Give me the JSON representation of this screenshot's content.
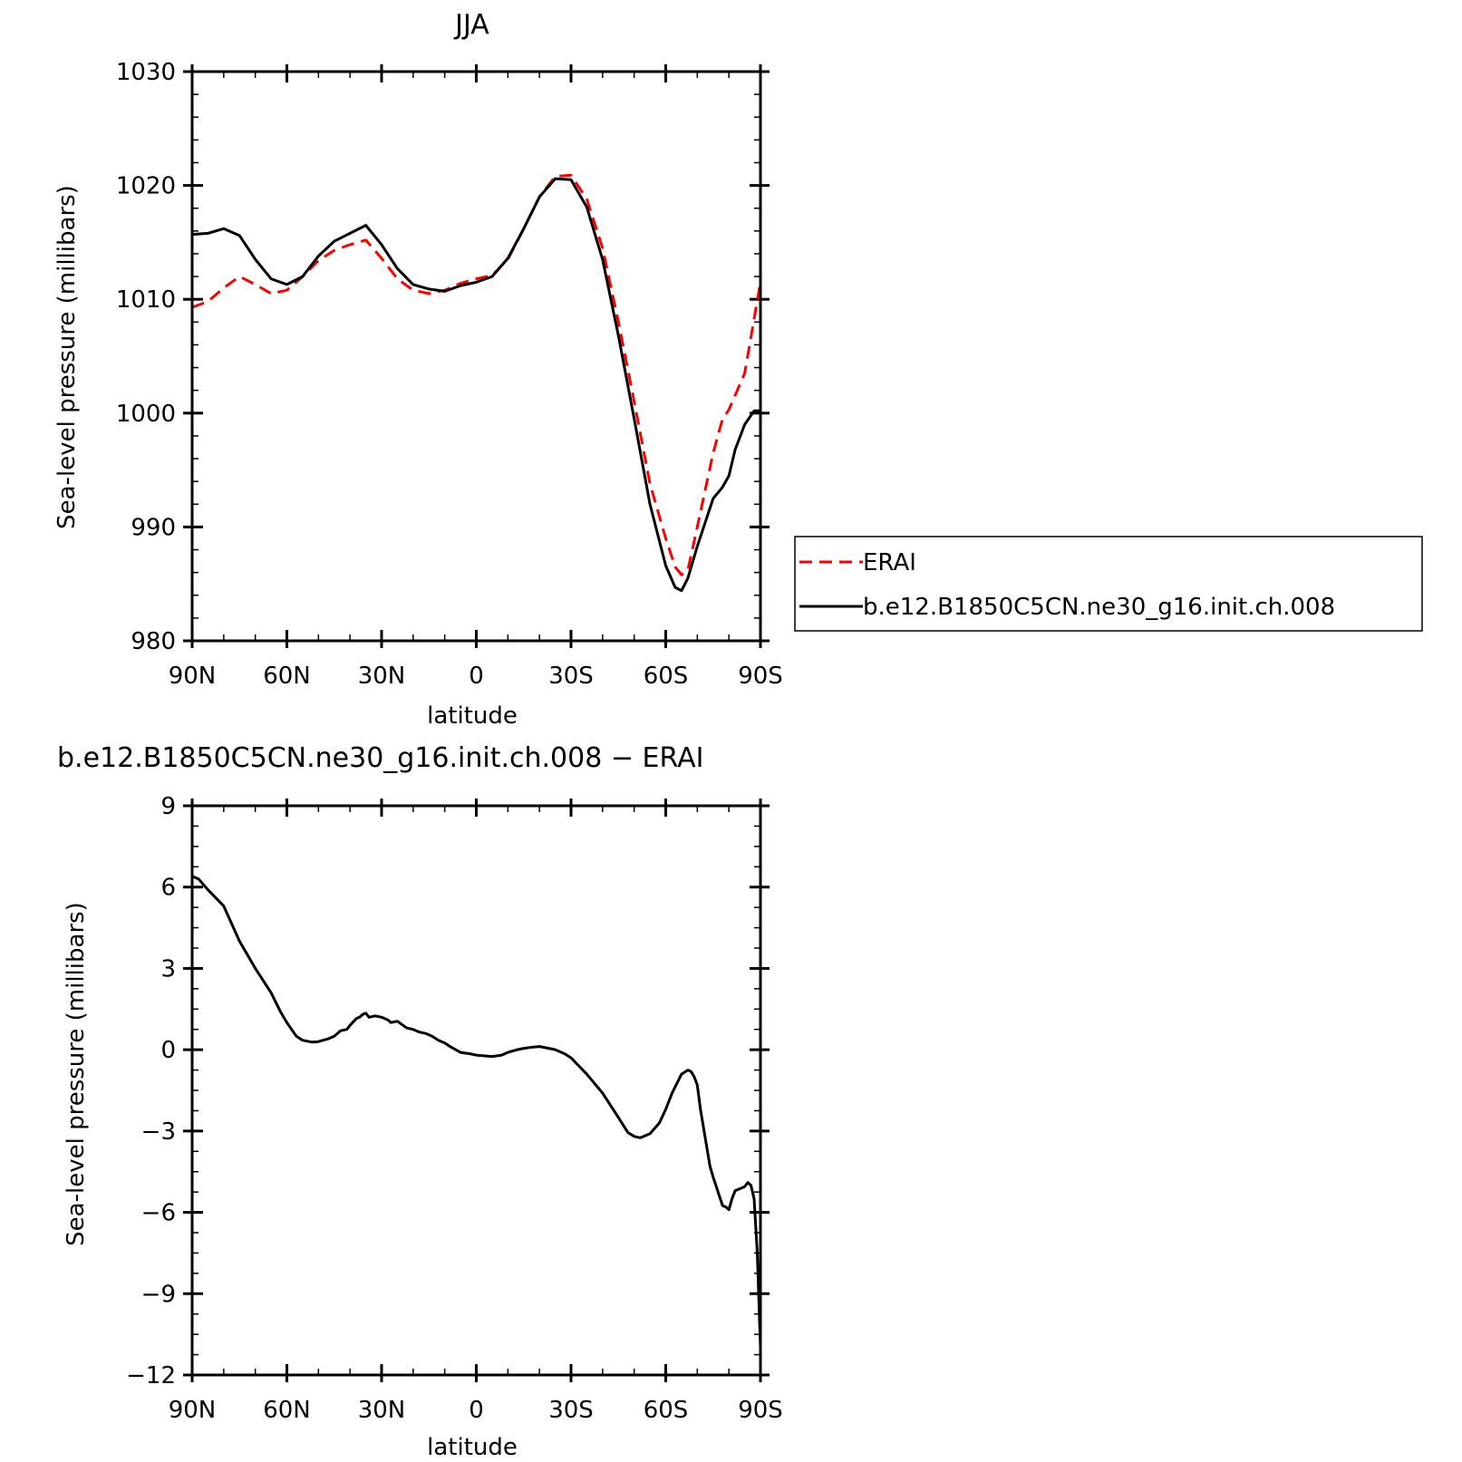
{
  "chart_data": [
    {
      "type": "line",
      "title": "JJA",
      "xlabel": "latitude",
      "ylabel": "Sea-level pressure (millibars)",
      "xlim": [
        90,
        -90
      ],
      "ylim": [
        980,
        1030
      ],
      "xtick_values": [
        90,
        60,
        30,
        0,
        -30,
        -60,
        -90
      ],
      "xtick_labels": [
        "90N",
        "60N",
        "30N",
        "0",
        "30S",
        "60S",
        "90S"
      ],
      "ytick_values": [
        980,
        990,
        1000,
        1010,
        1020,
        1030
      ],
      "ytick_labels": [
        "980",
        "990",
        "1000",
        "1010",
        "1020",
        "1030"
      ],
      "legend": {
        "position": "right"
      },
      "series": [
        {
          "name": "ERAI",
          "color": "#ff0000",
          "dash": "dashed",
          "x": [
            90,
            85,
            80,
            75,
            70,
            65,
            60,
            55,
            50,
            45,
            40,
            35,
            30,
            25,
            20,
            15,
            10,
            5,
            0,
            -5,
            -10,
            -15,
            -20,
            -25,
            -30,
            -35,
            -40,
            -45,
            -50,
            -55,
            -60,
            -63,
            -65,
            -67,
            -70,
            -75,
            -78,
            -80,
            -85,
            -90
          ],
          "y": [
            1009.3,
            1009.8,
            1011.0,
            1012.0,
            1011.3,
            1010.5,
            1010.8,
            1012.0,
            1013.4,
            1014.3,
            1014.8,
            1015.2,
            1013.6,
            1011.8,
            1010.8,
            1010.5,
            1010.8,
            1011.4,
            1011.8,
            1012.1,
            1013.5,
            1016.2,
            1019.0,
            1020.8,
            1020.9,
            1018.8,
            1014.5,
            1008.0,
            1001.0,
            993.8,
            989.0,
            986.5,
            985.8,
            986.2,
            990.0,
            996.5,
            999.5,
            1000.3,
            1003.5,
            1011.5
          ]
        },
        {
          "name": "b.e12.B1850C5CN.ne30_g16.init.ch.008",
          "color": "#000000",
          "dash": "solid",
          "x": [
            90,
            85,
            80,
            75,
            70,
            65,
            60,
            55,
            50,
            45,
            40,
            35,
            30,
            25,
            20,
            15,
            10,
            5,
            0,
            -5,
            -10,
            -15,
            -20,
            -25,
            -30,
            -35,
            -40,
            -45,
            -50,
            -55,
            -60,
            -63,
            -65,
            -67,
            -70,
            -75,
            -78,
            -80,
            -82,
            -85,
            -88,
            -90
          ],
          "y": [
            1015.7,
            1015.8,
            1016.2,
            1015.6,
            1013.5,
            1011.8,
            1011.3,
            1012.0,
            1013.8,
            1015.1,
            1015.8,
            1016.5,
            1014.8,
            1012.7,
            1011.3,
            1010.9,
            1010.7,
            1011.2,
            1011.5,
            1012.0,
            1013.6,
            1016.2,
            1019.0,
            1020.6,
            1020.5,
            1018.1,
            1013.5,
            1006.8,
            999.5,
            992.0,
            986.6,
            984.7,
            984.4,
            985.5,
            988.3,
            992.5,
            993.5,
            994.5,
            996.8,
            999.0,
            1000.2,
            1000.2
          ]
        }
      ]
    },
    {
      "type": "line",
      "title": "b.e12.B1850C5CN.ne30_g16.init.ch.008 − ERAI",
      "xlabel": "latitude",
      "ylabel": "Sea-level pressure (millibars)",
      "xlim": [
        90,
        -90
      ],
      "ylim": [
        -12,
        9
      ],
      "xtick_values": [
        90,
        60,
        30,
        0,
        -30,
        -60,
        -90
      ],
      "xtick_labels": [
        "90N",
        "60N",
        "30N",
        "0",
        "30S",
        "60S",
        "90S"
      ],
      "ytick_values": [
        -12,
        -9,
        -6,
        -3,
        0,
        3,
        6,
        9
      ],
      "ytick_labels": [
        "−12",
        "−9",
        "−6",
        "−3",
        "0",
        "3",
        "6",
        "9"
      ],
      "series": [
        {
          "color": "#000000",
          "dash": "solid",
          "x": [
            90,
            88,
            85,
            80,
            75,
            70,
            65,
            62,
            60,
            57,
            55,
            52,
            50,
            47,
            45,
            43,
            41,
            40,
            38,
            37,
            36,
            35,
            34,
            32,
            30,
            28,
            27,
            25,
            22,
            20,
            18,
            16,
            14,
            12,
            10,
            8,
            5,
            2,
            0,
            -2,
            -5,
            -8,
            -10,
            -13,
            -15,
            -18,
            -20,
            -23,
            -25,
            -28,
            -30,
            -35,
            -40,
            -45,
            -48,
            -50,
            -52,
            -55,
            -58,
            -60,
            -62,
            -65,
            -67,
            -68,
            -69,
            -70,
            -71,
            -72,
            -73,
            -74,
            -75,
            -77,
            -78,
            -79,
            -80,
            -81,
            -82,
            -83,
            -84,
            -85,
            -86,
            -87,
            -88,
            -89,
            -90
          ],
          "y": [
            6.4,
            6.3,
            5.9,
            5.3,
            4.0,
            3.0,
            2.1,
            1.4,
            1.0,
            0.5,
            0.35,
            0.28,
            0.3,
            0.4,
            0.5,
            0.7,
            0.75,
            0.9,
            1.15,
            1.2,
            1.3,
            1.35,
            1.2,
            1.25,
            1.2,
            1.1,
            1.0,
            1.05,
            0.8,
            0.75,
            0.65,
            0.6,
            0.5,
            0.35,
            0.25,
            0.1,
            -0.1,
            -0.15,
            -0.2,
            -0.22,
            -0.25,
            -0.2,
            -0.1,
            0.0,
            0.05,
            0.1,
            0.12,
            0.05,
            0.0,
            -0.15,
            -0.3,
            -0.9,
            -1.6,
            -2.5,
            -3.05,
            -3.2,
            -3.25,
            -3.1,
            -2.7,
            -2.2,
            -1.6,
            -0.9,
            -0.75,
            -0.8,
            -1.0,
            -1.3,
            -2.2,
            -2.9,
            -3.6,
            -4.3,
            -4.7,
            -5.4,
            -5.75,
            -5.8,
            -5.9,
            -5.5,
            -5.2,
            -5.15,
            -5.1,
            -5.05,
            -4.9,
            -5.0,
            -5.5,
            -7.5,
            -11.0
          ]
        }
      ]
    }
  ]
}
